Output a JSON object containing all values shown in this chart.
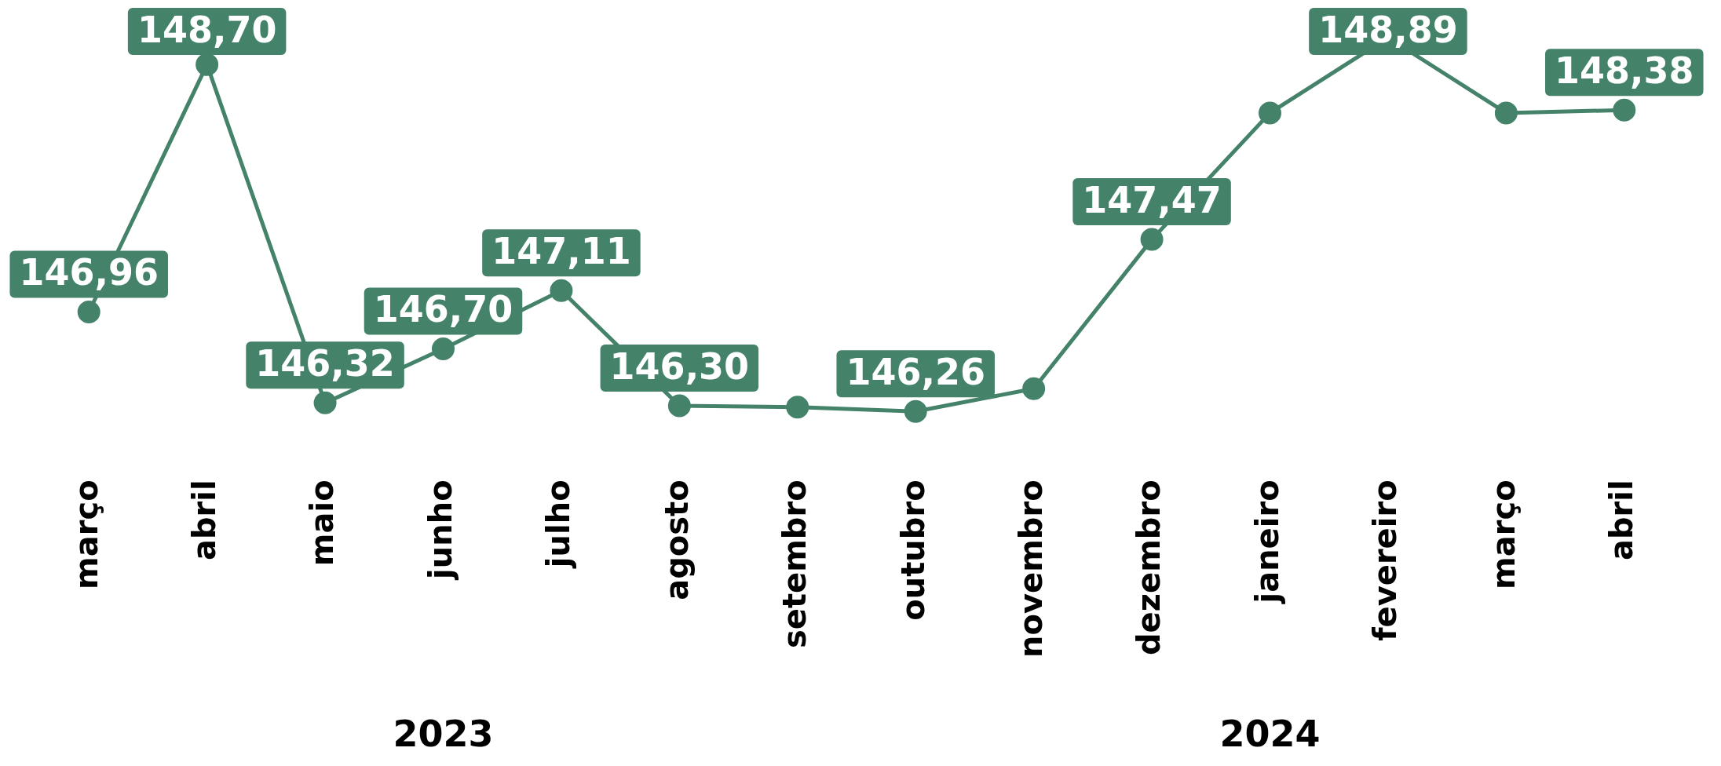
{
  "chart_data": {
    "type": "line",
    "categories": [
      "março",
      "abril",
      "maio",
      "junho",
      "julho",
      "agosto",
      "setembro",
      "outubro",
      "novembro",
      "dezembro",
      "janeiro",
      "fevereiro",
      "março",
      "abril"
    ],
    "series": [
      {
        "color": "#44836a",
        "values": [
          146.96,
          148.7,
          146.32,
          146.7,
          147.11,
          146.3,
          146.29,
          146.26,
          146.42,
          147.47,
          148.36,
          148.89,
          148.36,
          148.38
        ],
        "value_labels": [
          "146,96",
          "148,70",
          "146,32",
          "146,70",
          "147,11",
          "146,30",
          null,
          "146,26",
          null,
          "147,47",
          null,
          "148,89",
          null,
          "148,38"
        ]
      }
    ],
    "marker": "circle",
    "grid": false,
    "legend": false,
    "annotations": [
      "2023",
      "2024"
    ]
  }
}
